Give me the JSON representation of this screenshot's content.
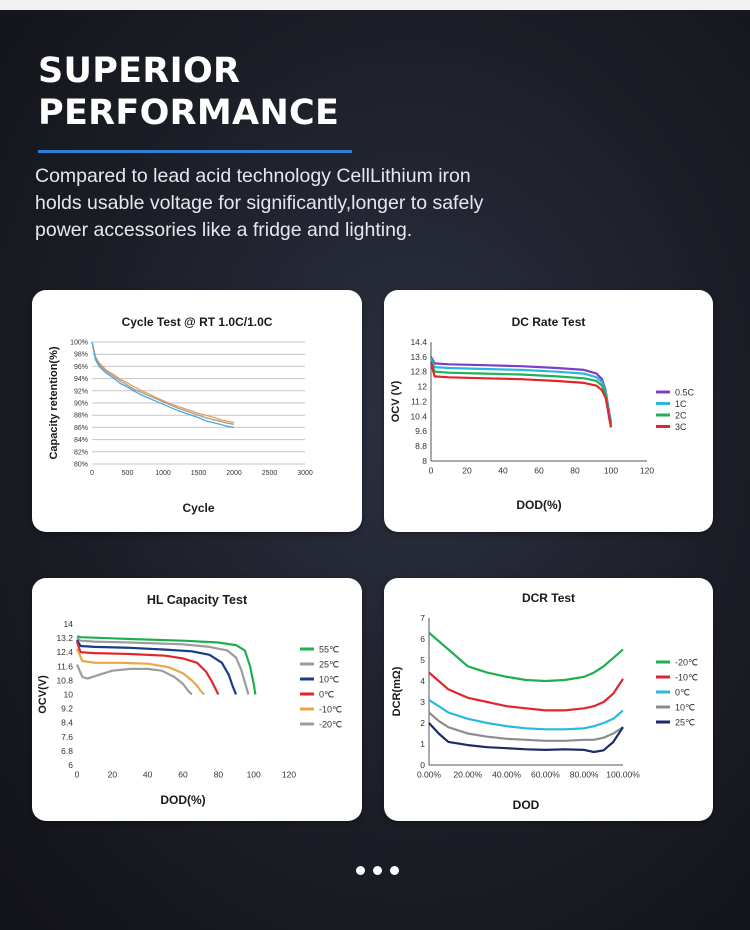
{
  "header": {
    "title_line1": "SUPERIOR",
    "title_line2": "PERFORMANCE",
    "desc_line1": "Compared to lead acid technology CellLithium iron",
    "desc_line2": "holds usable voltage for significantly,longer to safely",
    "desc_line3": "power accessories like a fridge and lighting."
  },
  "colors": {
    "accent": "#2f7fd6",
    "card": "#ffffff",
    "background": "#1c1e27"
  },
  "pager": {
    "count": 3
  },
  "chart_data": [
    {
      "type": "line",
      "title": "Cycle Test @ RT 1.0C/1.0C",
      "xlabel": "Cycle",
      "ylabel": "Capacity retention(%)",
      "xlim": [
        0,
        3000
      ],
      "ylim": [
        80,
        100
      ],
      "xticks": [
        0,
        500,
        1000,
        1500,
        2000,
        2500,
        3000
      ],
      "xticklabels": [
        "0",
        "500",
        "1000",
        "1500",
        "2000",
        "2500",
        "3000"
      ],
      "yticks": [
        80,
        82,
        84,
        86,
        88,
        90,
        92,
        94,
        96,
        98,
        100
      ],
      "yticklabels": [
        "80%",
        "82%",
        "84%",
        "86%",
        "88%",
        "90%",
        "92%",
        "94%",
        "96%",
        "98%",
        "100%"
      ],
      "grid": true,
      "legend": "none",
      "series": [
        {
          "color": "#e0a060",
          "x": [
            0,
            50,
            100,
            200,
            300,
            400,
            500,
            600,
            700,
            800,
            900,
            1000,
            1100,
            1200,
            1300,
            1400,
            1500,
            1600,
            1700,
            1800,
            1900,
            2000
          ],
          "y": [
            100,
            97.6,
            96.6,
            95.4,
            94.7,
            93.9,
            93.3,
            92.6,
            92.0,
            91.5,
            90.9,
            90.4,
            89.9,
            89.5,
            89.1,
            88.7,
            88.3,
            88.0,
            87.7,
            87.3,
            87.0,
            86.8
          ]
        },
        {
          "color": "#a89c8c",
          "x": [
            0,
            50,
            100,
            200,
            300,
            400,
            500,
            600,
            700,
            800,
            900,
            1000,
            1100,
            1200,
            1300,
            1400,
            1500,
            1600,
            1700,
            1800,
            1900,
            2000
          ],
          "y": [
            100,
            97.4,
            96.3,
            95.2,
            94.4,
            93.6,
            92.9,
            92.2,
            91.7,
            91.2,
            90.7,
            90.2,
            89.7,
            89.2,
            88.8,
            88.4,
            88.0,
            87.6,
            87.3,
            87.0,
            86.7,
            86.5
          ]
        },
        {
          "color": "#4aa8dc",
          "x": [
            0,
            50,
            100,
            200,
            300,
            400,
            500,
            600,
            700,
            800,
            900,
            1000,
            1100,
            1200,
            1300,
            1400,
            1500,
            1600,
            1700,
            1800,
            1900,
            2000
          ],
          "y": [
            100,
            97.1,
            96.0,
            94.9,
            94.1,
            93.2,
            92.6,
            91.9,
            91.3,
            90.8,
            90.3,
            89.8,
            89.3,
            88.8,
            88.4,
            88.0,
            87.6,
            87.1,
            86.8,
            86.5,
            86.2,
            86.0
          ]
        }
      ]
    },
    {
      "type": "line",
      "title": "DC Rate Test",
      "xlabel": "DOD(%)",
      "ylabel": "OCV (V)",
      "xlim": [
        0,
        120
      ],
      "ylim": [
        8,
        14.4
      ],
      "xticks": [
        0,
        20,
        40,
        60,
        80,
        100,
        120
      ],
      "xticklabels": [
        "0",
        "20",
        "40",
        "60",
        "80",
        "100",
        "120"
      ],
      "yticks": [
        8,
        8.8,
        9.6,
        10.4,
        11.2,
        12,
        12.8,
        13.6,
        14.4
      ],
      "yticklabels": [
        "8",
        "8.8",
        "9.6",
        "10.4",
        "11.2",
        "12",
        "12.8",
        "13.6",
        "14.4"
      ],
      "grid": false,
      "legend": "right",
      "series": [
        {
          "name": "0.5C",
          "color": "#7b3fc4",
          "x": [
            0,
            2,
            10,
            30,
            50,
            70,
            85,
            92,
            95,
            97,
            98,
            99,
            100
          ],
          "y": [
            13.6,
            13.25,
            13.2,
            13.15,
            13.1,
            13.0,
            12.9,
            12.7,
            12.4,
            11.8,
            11.2,
            10.6,
            10.1
          ]
        },
        {
          "name": "1C",
          "color": "#28b8e0",
          "x": [
            0,
            2,
            10,
            30,
            50,
            70,
            85,
            92,
            95,
            97,
            98,
            99,
            100
          ],
          "y": [
            13.5,
            13.05,
            13.0,
            12.95,
            12.9,
            12.8,
            12.7,
            12.5,
            12.25,
            11.7,
            11.1,
            10.5,
            10.0
          ]
        },
        {
          "name": "2C",
          "color": "#22b05a",
          "x": [
            0,
            2,
            10,
            30,
            50,
            70,
            85,
            92,
            95,
            97,
            98,
            99,
            100
          ],
          "y": [
            13.4,
            12.8,
            12.75,
            12.7,
            12.65,
            12.55,
            12.45,
            12.3,
            12.05,
            11.6,
            11.0,
            10.4,
            9.9
          ]
        },
        {
          "name": "3C",
          "color": "#e0262c",
          "x": [
            0,
            2,
            10,
            30,
            50,
            70,
            85,
            92,
            95,
            97,
            98,
            99,
            100
          ],
          "y": [
            13.3,
            12.55,
            12.5,
            12.45,
            12.4,
            12.3,
            12.2,
            12.05,
            11.8,
            11.4,
            10.9,
            10.3,
            9.8
          ]
        }
      ]
    },
    {
      "type": "line",
      "title": "HL Capacity Test",
      "xlabel": "DOD(%)",
      "ylabel": "OCV(V)",
      "xlim": [
        0,
        120
      ],
      "ylim": [
        6,
        14
      ],
      "xticks": [
        0,
        20,
        40,
        60,
        80,
        100,
        120
      ],
      "xticklabels": [
        "0",
        "20",
        "40",
        "60",
        "80",
        "100",
        "120"
      ],
      "yticks": [
        6,
        6.8,
        7.6,
        8.4,
        9.2,
        10,
        10.8,
        11.6,
        12.4,
        13.2,
        14
      ],
      "yticklabels": [
        "6",
        "6.8",
        "7.6",
        "8.4",
        "9.2",
        "10",
        "10.8",
        "11.6",
        "12.4",
        "13.2",
        "14"
      ],
      "grid": false,
      "legend": "right",
      "series": [
        {
          "name": "55℃",
          "color": "#1fae4f",
          "x": [
            0,
            2,
            10,
            30,
            60,
            80,
            90,
            95,
            98,
            100,
            101
          ],
          "y": [
            13.3,
            13.25,
            13.22,
            13.15,
            13.05,
            12.95,
            12.8,
            12.5,
            11.6,
            10.6,
            10.0
          ]
        },
        {
          "name": "25℃",
          "color": "#9c9c9c",
          "x": [
            0,
            2,
            10,
            30,
            60,
            75,
            85,
            90,
            93,
            95,
            97
          ],
          "y": [
            13.2,
            13.05,
            13.0,
            12.95,
            12.85,
            12.7,
            12.5,
            12.1,
            11.4,
            10.7,
            10.0
          ]
        },
        {
          "name": "10℃",
          "color": "#1a3a8a",
          "x": [
            0,
            2,
            10,
            30,
            50,
            65,
            75,
            82,
            86,
            88,
            90
          ],
          "y": [
            13.1,
            12.75,
            12.7,
            12.65,
            12.55,
            12.45,
            12.25,
            11.8,
            11.1,
            10.5,
            10.0
          ]
        },
        {
          "name": "0℃",
          "color": "#e0262c",
          "x": [
            0,
            2,
            10,
            30,
            50,
            60,
            68,
            73,
            76,
            78,
            80
          ],
          "y": [
            13.0,
            12.4,
            12.35,
            12.3,
            12.2,
            12.05,
            11.8,
            11.3,
            10.8,
            10.4,
            10.0
          ]
        },
        {
          "name": "-10℃",
          "color": "#e8a848",
          "x": [
            0,
            3,
            10,
            25,
            40,
            52,
            60,
            65,
            68,
            70,
            72
          ],
          "y": [
            12.6,
            11.9,
            11.8,
            11.8,
            11.75,
            11.55,
            11.2,
            10.8,
            10.5,
            10.2,
            10.0
          ]
        },
        {
          "name": "-20℃",
          "color": "#9c9c9c",
          "x": [
            0,
            3,
            6,
            12,
            20,
            30,
            40,
            48,
            55,
            60,
            63,
            65
          ],
          "y": [
            11.7,
            11.0,
            10.9,
            11.1,
            11.35,
            11.45,
            11.45,
            11.35,
            11.0,
            10.6,
            10.2,
            10.0
          ]
        }
      ]
    },
    {
      "type": "line",
      "title": "DCR Test",
      "xlabel": "DOD",
      "ylabel": "DCR(mΩ)",
      "xlim": [
        0,
        100
      ],
      "ylim": [
        0,
        7
      ],
      "xticks": [
        0,
        20,
        40,
        60,
        80,
        100
      ],
      "xticklabels": [
        "0.00%",
        "20.00%",
        "40.00%",
        "60.00%",
        "80.00%",
        "100.00%"
      ],
      "yticks": [
        0,
        1,
        2,
        3,
        4,
        5,
        6,
        7
      ],
      "yticklabels": [
        "0",
        "1",
        "2",
        "3",
        "4",
        "5",
        "6",
        "7"
      ],
      "grid": false,
      "legend": "right",
      "series": [
        {
          "name": "-20℃",
          "color": "#1fae4f",
          "x": [
            0,
            10,
            20,
            30,
            40,
            50,
            60,
            70,
            80,
            85,
            90,
            95,
            100
          ],
          "y": [
            6.3,
            5.5,
            4.7,
            4.4,
            4.2,
            4.05,
            4.0,
            4.05,
            4.2,
            4.4,
            4.7,
            5.1,
            5.5
          ]
        },
        {
          "name": "-10℃",
          "color": "#e0262c",
          "x": [
            0,
            5,
            10,
            20,
            30,
            40,
            50,
            60,
            70,
            80,
            85,
            90,
            95,
            100
          ],
          "y": [
            4.4,
            4.0,
            3.6,
            3.2,
            3.0,
            2.8,
            2.7,
            2.6,
            2.6,
            2.7,
            2.8,
            3.0,
            3.4,
            4.1
          ]
        },
        {
          "name": "0℃",
          "color": "#28b8e0",
          "x": [
            0,
            5,
            10,
            20,
            30,
            40,
            50,
            60,
            70,
            80,
            85,
            90,
            95,
            100
          ],
          "y": [
            3.1,
            2.8,
            2.5,
            2.2,
            2.0,
            1.85,
            1.75,
            1.7,
            1.7,
            1.75,
            1.85,
            2.0,
            2.2,
            2.6
          ]
        },
        {
          "name": "10℃",
          "color": "#8c8c8c",
          "x": [
            0,
            5,
            10,
            20,
            30,
            40,
            50,
            60,
            70,
            80,
            85,
            90,
            95,
            100
          ],
          "y": [
            2.5,
            2.1,
            1.8,
            1.5,
            1.35,
            1.25,
            1.2,
            1.15,
            1.15,
            1.2,
            1.2,
            1.3,
            1.5,
            1.8
          ]
        },
        {
          "name": "25℃",
          "color": "#1a2a6a",
          "x": [
            0,
            5,
            10,
            20,
            30,
            40,
            50,
            60,
            70,
            80,
            85,
            90,
            95,
            100
          ],
          "y": [
            2.0,
            1.5,
            1.1,
            0.95,
            0.85,
            0.8,
            0.75,
            0.72,
            0.75,
            0.72,
            0.62,
            0.7,
            1.1,
            1.8
          ]
        }
      ]
    }
  ]
}
